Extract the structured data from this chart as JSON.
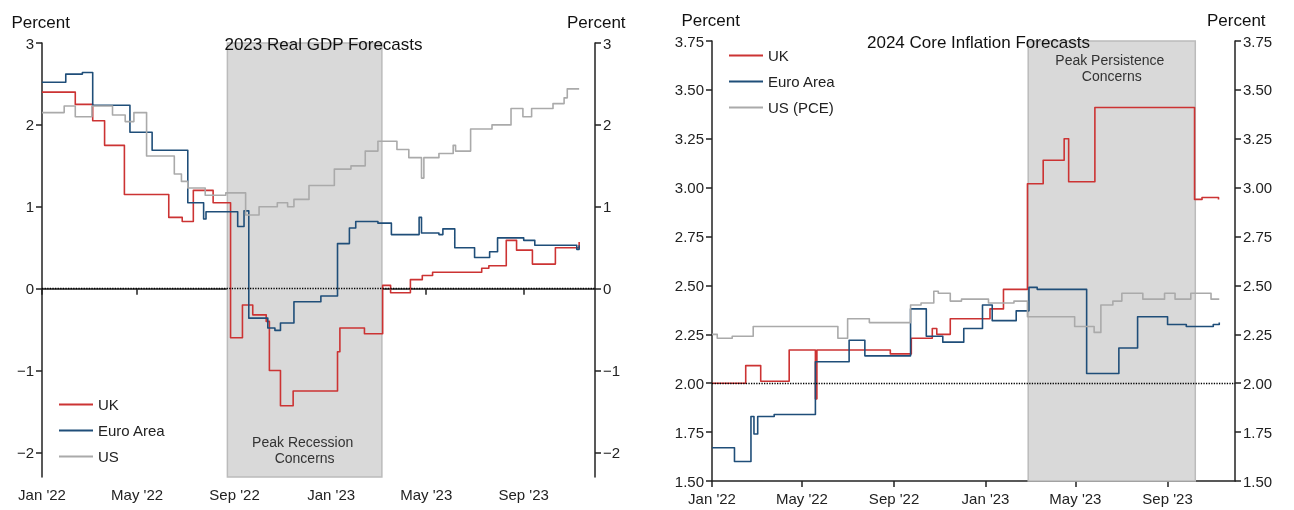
{
  "chart_data": [
    {
      "type": "step",
      "title": "2023 Real GDP Forecasts",
      "ylabel": "Percent",
      "y2label": "Percent",
      "xlim": [
        "2022-01-01",
        "2023-11-30"
      ],
      "xticks": [
        {
          "value": "2022-01-01",
          "label": "Jan '22"
        },
        {
          "value": "2022-05-01",
          "label": "May '22"
        },
        {
          "value": "2022-09-01",
          "label": "Sep '22"
        },
        {
          "value": "2023-01-01",
          "label": "Jan '23"
        },
        {
          "value": "2023-05-01",
          "label": "May '23"
        },
        {
          "value": "2023-09-01",
          "label": "Sep '23"
        }
      ],
      "ylim": [
        -2.3,
        3
      ],
      "yticks": [
        {
          "value": -2,
          "label": "−2"
        },
        {
          "value": -1,
          "label": "−1"
        },
        0,
        1,
        2,
        3
      ],
      "y2lim": [
        -2.3,
        3
      ],
      "y2ticks": [
        {
          "value": -2,
          "label": "−2"
        },
        {
          "value": -1,
          "label": "−1"
        },
        0,
        1,
        2,
        3
      ],
      "grid": false,
      "legend": "bottom left",
      "marker": "none",
      "line_style": "solid",
      "ref_lines": [
        {
          "axis": "y",
          "value": 0,
          "color": "#000000",
          "line_style": "dotted"
        }
      ],
      "bands": [
        {
          "axis": "x",
          "from": "2022-08-23",
          "to": "2023-03-06",
          "label": "Peak Recession Concerns",
          "color": "#d9d9d9"
        }
      ],
      "series": [
        {
          "name": "UK",
          "color": "#cc3333",
          "x": [
            "2022-01-01",
            "2022-02-12",
            "2022-03-06",
            "2022-03-21",
            "2022-04-15",
            "2022-06-10",
            "2022-06-27",
            "2022-07-11",
            "2022-08-05",
            "2022-08-27",
            "2022-09-11",
            "2022-09-24",
            "2022-10-11",
            "2022-10-15",
            "2022-10-29",
            "2022-11-14",
            "2023-01-09",
            "2023-01-12",
            "2023-02-12",
            "2023-03-07",
            "2023-03-17",
            "2023-04-11",
            "2023-04-26",
            "2023-05-09",
            "2023-07-10",
            "2023-07-19",
            "2023-08-10",
            "2023-08-23",
            "2023-09-12",
            "2023-10-11",
            "2023-11-09",
            "2023-11-10"
          ],
          "values": [
            2.4,
            2.25,
            2.05,
            1.75,
            1.15,
            0.87,
            0.82,
            1.2,
            1.05,
            -0.6,
            -0.2,
            -0.32,
            -0.4,
            -1.0,
            -1.43,
            -1.25,
            -0.77,
            -0.48,
            -0.55,
            0.04,
            -0.05,
            0.11,
            0.16,
            0.2,
            0.25,
            0.28,
            0.59,
            0.47,
            0.3,
            0.5,
            0.5,
            0.57
          ]
        },
        {
          "name": "Euro Area",
          "color": "#1f4e79",
          "x": [
            "2022-01-01",
            "2022-01-31",
            "2022-02-21",
            "2022-03-06",
            "2022-04-22",
            "2022-05-20",
            "2022-07-04",
            "2022-07-24",
            "2022-07-27",
            "2022-09-05",
            "2022-09-13",
            "2022-09-19",
            "2022-10-13",
            "2022-10-22",
            "2022-10-29",
            "2022-11-15",
            "2022-12-19",
            "2023-01-09",
            "2023-01-24",
            "2023-02-01",
            "2023-03-01",
            "2023-03-18",
            "2023-04-22",
            "2023-04-25",
            "2023-05-17",
            "2023-05-22",
            "2023-06-06",
            "2023-07-01",
            "2023-07-20",
            "2023-07-30",
            "2023-09-01",
            "2023-09-15",
            "2023-11-07",
            "2023-11-10"
          ],
          "values": [
            2.52,
            2.62,
            2.64,
            2.24,
            1.91,
            1.69,
            1.05,
            0.85,
            0.94,
            0.76,
            0.95,
            -0.36,
            -0.48,
            -0.51,
            -0.42,
            -0.16,
            -0.09,
            0.55,
            0.74,
            0.82,
            0.8,
            0.66,
            0.87,
            0.68,
            0.66,
            0.73,
            0.5,
            0.38,
            0.45,
            0.62,
            0.59,
            0.53,
            0.48,
            0.53
          ]
        },
        {
          "name": "US",
          "color": "#aaaaaa",
          "x": [
            "2022-01-01",
            "2022-01-29",
            "2022-02-12",
            "2022-03-05",
            "2022-03-31",
            "2022-04-16",
            "2022-04-27",
            "2022-05-13",
            "2022-06-17",
            "2022-06-26",
            "2022-07-04",
            "2022-07-26",
            "2022-08-21",
            "2022-09-15",
            "2022-10-02",
            "2022-10-25",
            "2022-11-07",
            "2022-11-15",
            "2022-12-04",
            "2023-01-05",
            "2023-01-26",
            "2023-02-13",
            "2023-03-01",
            "2023-03-25",
            "2023-04-09",
            "2023-04-25",
            "2023-04-28",
            "2023-05-17",
            "2023-06-04",
            "2023-06-07",
            "2023-06-26",
            "2023-07-23",
            "2023-08-16",
            "2023-08-31",
            "2023-09-11",
            "2023-10-08",
            "2023-10-22",
            "2023-10-26",
            "2023-11-10"
          ],
          "values": [
            2.15,
            2.23,
            2.1,
            2.23,
            2.12,
            2.04,
            2.15,
            1.62,
            1.4,
            1.31,
            1.23,
            1.14,
            1.17,
            0.9,
            1.0,
            1.05,
            1.0,
            1.09,
            1.26,
            1.46,
            1.5,
            1.68,
            1.8,
            1.7,
            1.6,
            1.35,
            1.6,
            1.65,
            1.75,
            1.68,
            1.95,
            2.0,
            2.2,
            2.1,
            2.2,
            2.26,
            2.33,
            2.44,
            2.44
          ]
        }
      ]
    },
    {
      "type": "step",
      "title": "2024 Core Inflation Forecasts",
      "ylabel": "Percent",
      "y2label": "Percent",
      "xlim": [
        "2022-01-01",
        "2023-11-30"
      ],
      "xticks": [
        {
          "value": "2022-01-01",
          "label": "Jan '22"
        },
        {
          "value": "2022-05-01",
          "label": "May '22"
        },
        {
          "value": "2022-09-01",
          "label": "Sep '22"
        },
        {
          "value": "2023-01-01",
          "label": "Jan '23"
        },
        {
          "value": "2023-05-01",
          "label": "May '23"
        },
        {
          "value": "2023-09-01",
          "label": "Sep '23"
        }
      ],
      "ylim": [
        1.5,
        3.75
      ],
      "yticks": [
        {
          "value": 1.5,
          "label": "1.50"
        },
        {
          "value": 1.75,
          "label": "1.75"
        },
        {
          "value": 2,
          "label": "2.00"
        },
        {
          "value": 2.25,
          "label": "2.25"
        },
        {
          "value": 2.5,
          "label": "2.50"
        },
        {
          "value": 2.75,
          "label": "2.75"
        },
        {
          "value": 3,
          "label": "3.00"
        },
        {
          "value": 3.25,
          "label": "3.25"
        },
        {
          "value": 3.5,
          "label": "3.50"
        },
        {
          "value": 3.75,
          "label": "3.75"
        }
      ],
      "y2lim": [
        1.5,
        3.75
      ],
      "y2ticks": [
        {
          "value": 1.5,
          "label": "1.50"
        },
        {
          "value": 1.75,
          "label": "1.75"
        },
        {
          "value": 2,
          "label": "2.00"
        },
        {
          "value": 2.25,
          "label": "2.25"
        },
        {
          "value": 2.5,
          "label": "2.50"
        },
        {
          "value": 2.75,
          "label": "2.75"
        },
        {
          "value": 3,
          "label": "3.00"
        },
        {
          "value": 3.25,
          "label": "3.25"
        },
        {
          "value": 3.5,
          "label": "3.50"
        },
        {
          "value": 3.75,
          "label": "3.75"
        }
      ],
      "grid": false,
      "legend": "top left",
      "marker": "none",
      "line_style": "solid",
      "ref_lines": [
        {
          "axis": "y",
          "value": 2,
          "color": "#000000",
          "line_style": "dotted"
        }
      ],
      "bands": [
        {
          "axis": "x",
          "from": "2023-02-27",
          "to": "2023-10-08",
          "label": "Peak Persistence Concerns",
          "color": "#d9d9d9"
        }
      ],
      "series": [
        {
          "name": "UK",
          "color": "#cc3333",
          "x": [
            "2022-01-01",
            "2022-02-15",
            "2022-03-07",
            "2022-04-14",
            "2022-05-19",
            "2022-05-21",
            "2022-08-27",
            "2022-09-24",
            "2022-10-22",
            "2022-10-28",
            "2022-11-15",
            "2023-01-07",
            "2023-01-25",
            "2023-02-26",
            "2023-03-19",
            "2023-04-16",
            "2023-04-22",
            "2023-05-27",
            "2023-10-07",
            "2023-10-17",
            "2023-11-08"
          ],
          "values": [
            2.0,
            2.09,
            2.01,
            2.17,
            1.92,
            2.17,
            2.15,
            2.23,
            2.28,
            2.25,
            2.33,
            2.38,
            2.48,
            3.02,
            3.14,
            3.25,
            3.03,
            3.41,
            2.94,
            2.95,
            2.94
          ]
        },
        {
          "name": "Euro Area",
          "color": "#1f4e79",
          "x": [
            "2022-01-01",
            "2022-01-31",
            "2022-02-22",
            "2022-02-26",
            "2022-03-03",
            "2022-03-25",
            "2022-05-19",
            "2022-07-03",
            "2022-07-24",
            "2022-09-23",
            "2022-10-14",
            "2022-11-05",
            "2022-12-03",
            "2022-12-28",
            "2023-01-10",
            "2023-02-11",
            "2023-02-28",
            "2023-03-11",
            "2023-05-16",
            "2023-06-28",
            "2023-07-23",
            "2023-09-01",
            "2023-09-26",
            "2023-11-01",
            "2023-11-09"
          ],
          "values": [
            1.67,
            1.6,
            1.83,
            1.74,
            1.83,
            1.84,
            2.11,
            2.22,
            2.14,
            2.38,
            2.24,
            2.21,
            2.28,
            2.4,
            2.32,
            2.37,
            2.49,
            2.48,
            2.05,
            2.18,
            2.34,
            2.3,
            2.29,
            2.3,
            2.31
          ]
        },
        {
          "name": "US (PCE)",
          "color": "#aaaaaa",
          "x": [
            "2022-01-01",
            "2022-01-08",
            "2022-01-28",
            "2022-02-25",
            "2022-06-18",
            "2022-07-01",
            "2022-07-30",
            "2022-09-23",
            "2022-10-07",
            "2022-10-24",
            "2022-10-30",
            "2022-11-15",
            "2022-11-30",
            "2023-01-05",
            "2023-02-08",
            "2023-02-26",
            "2023-04-30",
            "2023-05-26",
            "2023-06-04",
            "2023-06-20",
            "2023-07-02",
            "2023-07-30",
            "2023-08-28",
            "2023-09-11",
            "2023-10-02",
            "2023-10-29",
            "2023-11-09"
          ],
          "values": [
            2.25,
            2.23,
            2.24,
            2.29,
            2.23,
            2.33,
            2.31,
            2.4,
            2.41,
            2.47,
            2.46,
            2.42,
            2.43,
            2.41,
            2.42,
            2.34,
            2.29,
            2.26,
            2.4,
            2.42,
            2.46,
            2.43,
            2.46,
            2.43,
            2.46,
            2.43,
            2.43
          ]
        }
      ]
    }
  ]
}
